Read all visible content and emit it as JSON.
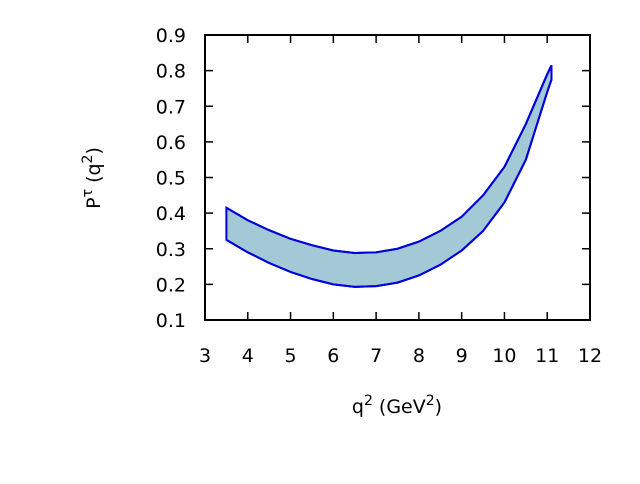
{
  "chart_data": {
    "type": "band",
    "x": [
      3.5,
      4,
      4.5,
      5,
      5.5,
      6,
      6.5,
      7,
      7.5,
      8,
      8.5,
      9,
      9.5,
      10,
      10.5,
      11,
      11.1
    ],
    "upper": [
      0.415,
      0.38,
      0.352,
      0.328,
      0.31,
      0.295,
      0.288,
      0.29,
      0.3,
      0.32,
      0.35,
      0.39,
      0.45,
      0.53,
      0.65,
      0.79,
      0.815
    ],
    "lower": [
      0.325,
      0.29,
      0.26,
      0.235,
      0.215,
      0.2,
      0.193,
      0.195,
      0.205,
      0.225,
      0.255,
      0.295,
      0.35,
      0.43,
      0.55,
      0.74,
      0.775
    ],
    "color": "#0000dd",
    "fill": "#a3c9d6",
    "xlim": [
      3,
      12
    ],
    "xticks": [
      3,
      4,
      5,
      6,
      7,
      8,
      9,
      10,
      11,
      12
    ],
    "ylim": [
      0.1,
      0.9
    ],
    "yticks": [
      0.1,
      0.2,
      0.3,
      0.4,
      0.5,
      0.6,
      0.7,
      0.8,
      0.9
    ],
    "xlabel": [
      {
        "text": "q"
      },
      {
        "text": "2",
        "sup": true
      },
      {
        "text": " (GeV"
      },
      {
        "text": "2",
        "sup": true
      },
      {
        "text": ")"
      }
    ],
    "ylabel": [
      {
        "text": "P"
      },
      {
        "text": "τ",
        "sup": true
      },
      {
        "text": " (q"
      },
      {
        "text": "2",
        "sup": true
      },
      {
        "text": ")"
      }
    ]
  }
}
